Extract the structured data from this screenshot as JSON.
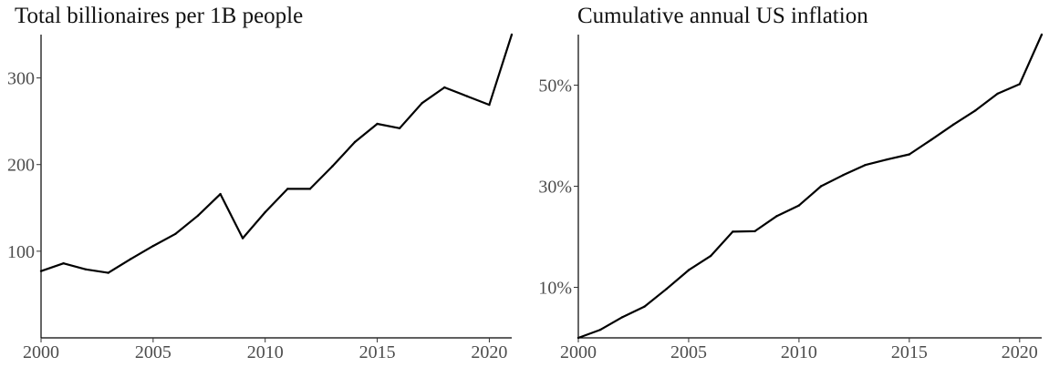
{
  "chart_data": [
    {
      "type": "line",
      "title": "Total billionaires per 1B people",
      "xlabel": "",
      "ylabel": "",
      "xlim": [
        2000,
        2021
      ],
      "ylim": [
        0,
        350
      ],
      "x_ticks": [
        2000,
        2005,
        2010,
        2015,
        2020
      ],
      "y_ticks": [
        100,
        200,
        300
      ],
      "y_tick_labels": [
        "100",
        "200",
        "300"
      ],
      "grid": false,
      "x": [
        2000,
        2001,
        2002,
        2003,
        2004,
        2005,
        2006,
        2007,
        2008,
        2009,
        2010,
        2011,
        2012,
        2013,
        2014,
        2015,
        2016,
        2017,
        2018,
        2019,
        2020,
        2021
      ],
      "values": [
        77,
        86,
        79,
        75,
        91,
        106,
        120,
        141,
        166,
        115,
        145,
        172,
        172,
        198,
        226,
        247,
        242,
        271,
        289,
        279,
        269,
        350
      ]
    },
    {
      "type": "line",
      "title": "Cumulative annual US inflation",
      "xlabel": "",
      "ylabel": "",
      "xlim": [
        2000,
        2021
      ],
      "ylim": [
        0,
        0.6
      ],
      "x_ticks": [
        2000,
        2005,
        2010,
        2015,
        2020
      ],
      "y_ticks": [
        0.1,
        0.3,
        0.5
      ],
      "y_tick_labels": [
        "10%",
        "30%",
        "50%"
      ],
      "grid": false,
      "x": [
        2000,
        2001,
        2002,
        2003,
        2004,
        2005,
        2006,
        2007,
        2008,
        2009,
        2010,
        2011,
        2012,
        2013,
        2014,
        2015,
        2016,
        2017,
        2018,
        2019,
        2020,
        2021
      ],
      "values": [
        0.0,
        0.016,
        0.041,
        0.062,
        0.097,
        0.134,
        0.162,
        0.21,
        0.211,
        0.241,
        0.262,
        0.3,
        0.322,
        0.342,
        0.353,
        0.363,
        0.392,
        0.422,
        0.45,
        0.483,
        0.502,
        0.6
      ]
    }
  ]
}
